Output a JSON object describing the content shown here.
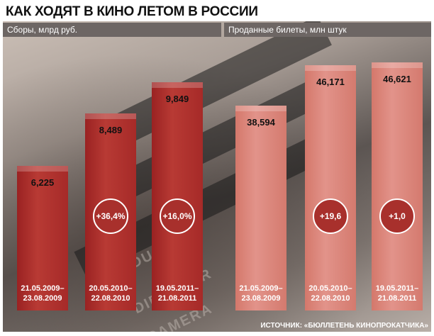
{
  "chart_data": {
    "type": "bar",
    "title": "КАК ХОДЯТ В КИНО ЛЕТОМ В РОССИИ",
    "source": "ИСТОЧНИК: «БЮЛЛЕТЕНЬ КИНОПРОКАТЧИКА»",
    "panels": [
      {
        "subtitle": "Сборы, млрд руб.",
        "ylim": [
          0,
          11
        ],
        "bars": [
          {
            "value": 6.225,
            "label": "6,225",
            "change": "",
            "period": [
              "21.05.2009–",
              "23.08.2009"
            ]
          },
          {
            "value": 8.489,
            "label": "8,489",
            "change": "+36,4%",
            "period": [
              "20.05.2010–",
              "22.08.2010"
            ]
          },
          {
            "value": 9.849,
            "label": "9,849",
            "change": "+16,0%",
            "period": [
              "19.05.2011–",
              "21.08.2011"
            ]
          }
        ]
      },
      {
        "subtitle": "Проданные билеты, млн штук",
        "ylim": [
          0,
          48
        ],
        "bars": [
          {
            "value": 38.594,
            "label": "38,594",
            "change": "",
            "period": [
              "21.05.2009–",
              "23.08.2009"
            ]
          },
          {
            "value": 46.171,
            "label": "46,171",
            "change": "+19,6",
            "period": [
              "20.05.2010–",
              "22.08.2010"
            ]
          },
          {
            "value": 46.621,
            "label": "46,621",
            "change": "+1,0",
            "period": [
              "19.05.2011–",
              "21.08.2011"
            ]
          }
        ]
      }
    ]
  }
}
